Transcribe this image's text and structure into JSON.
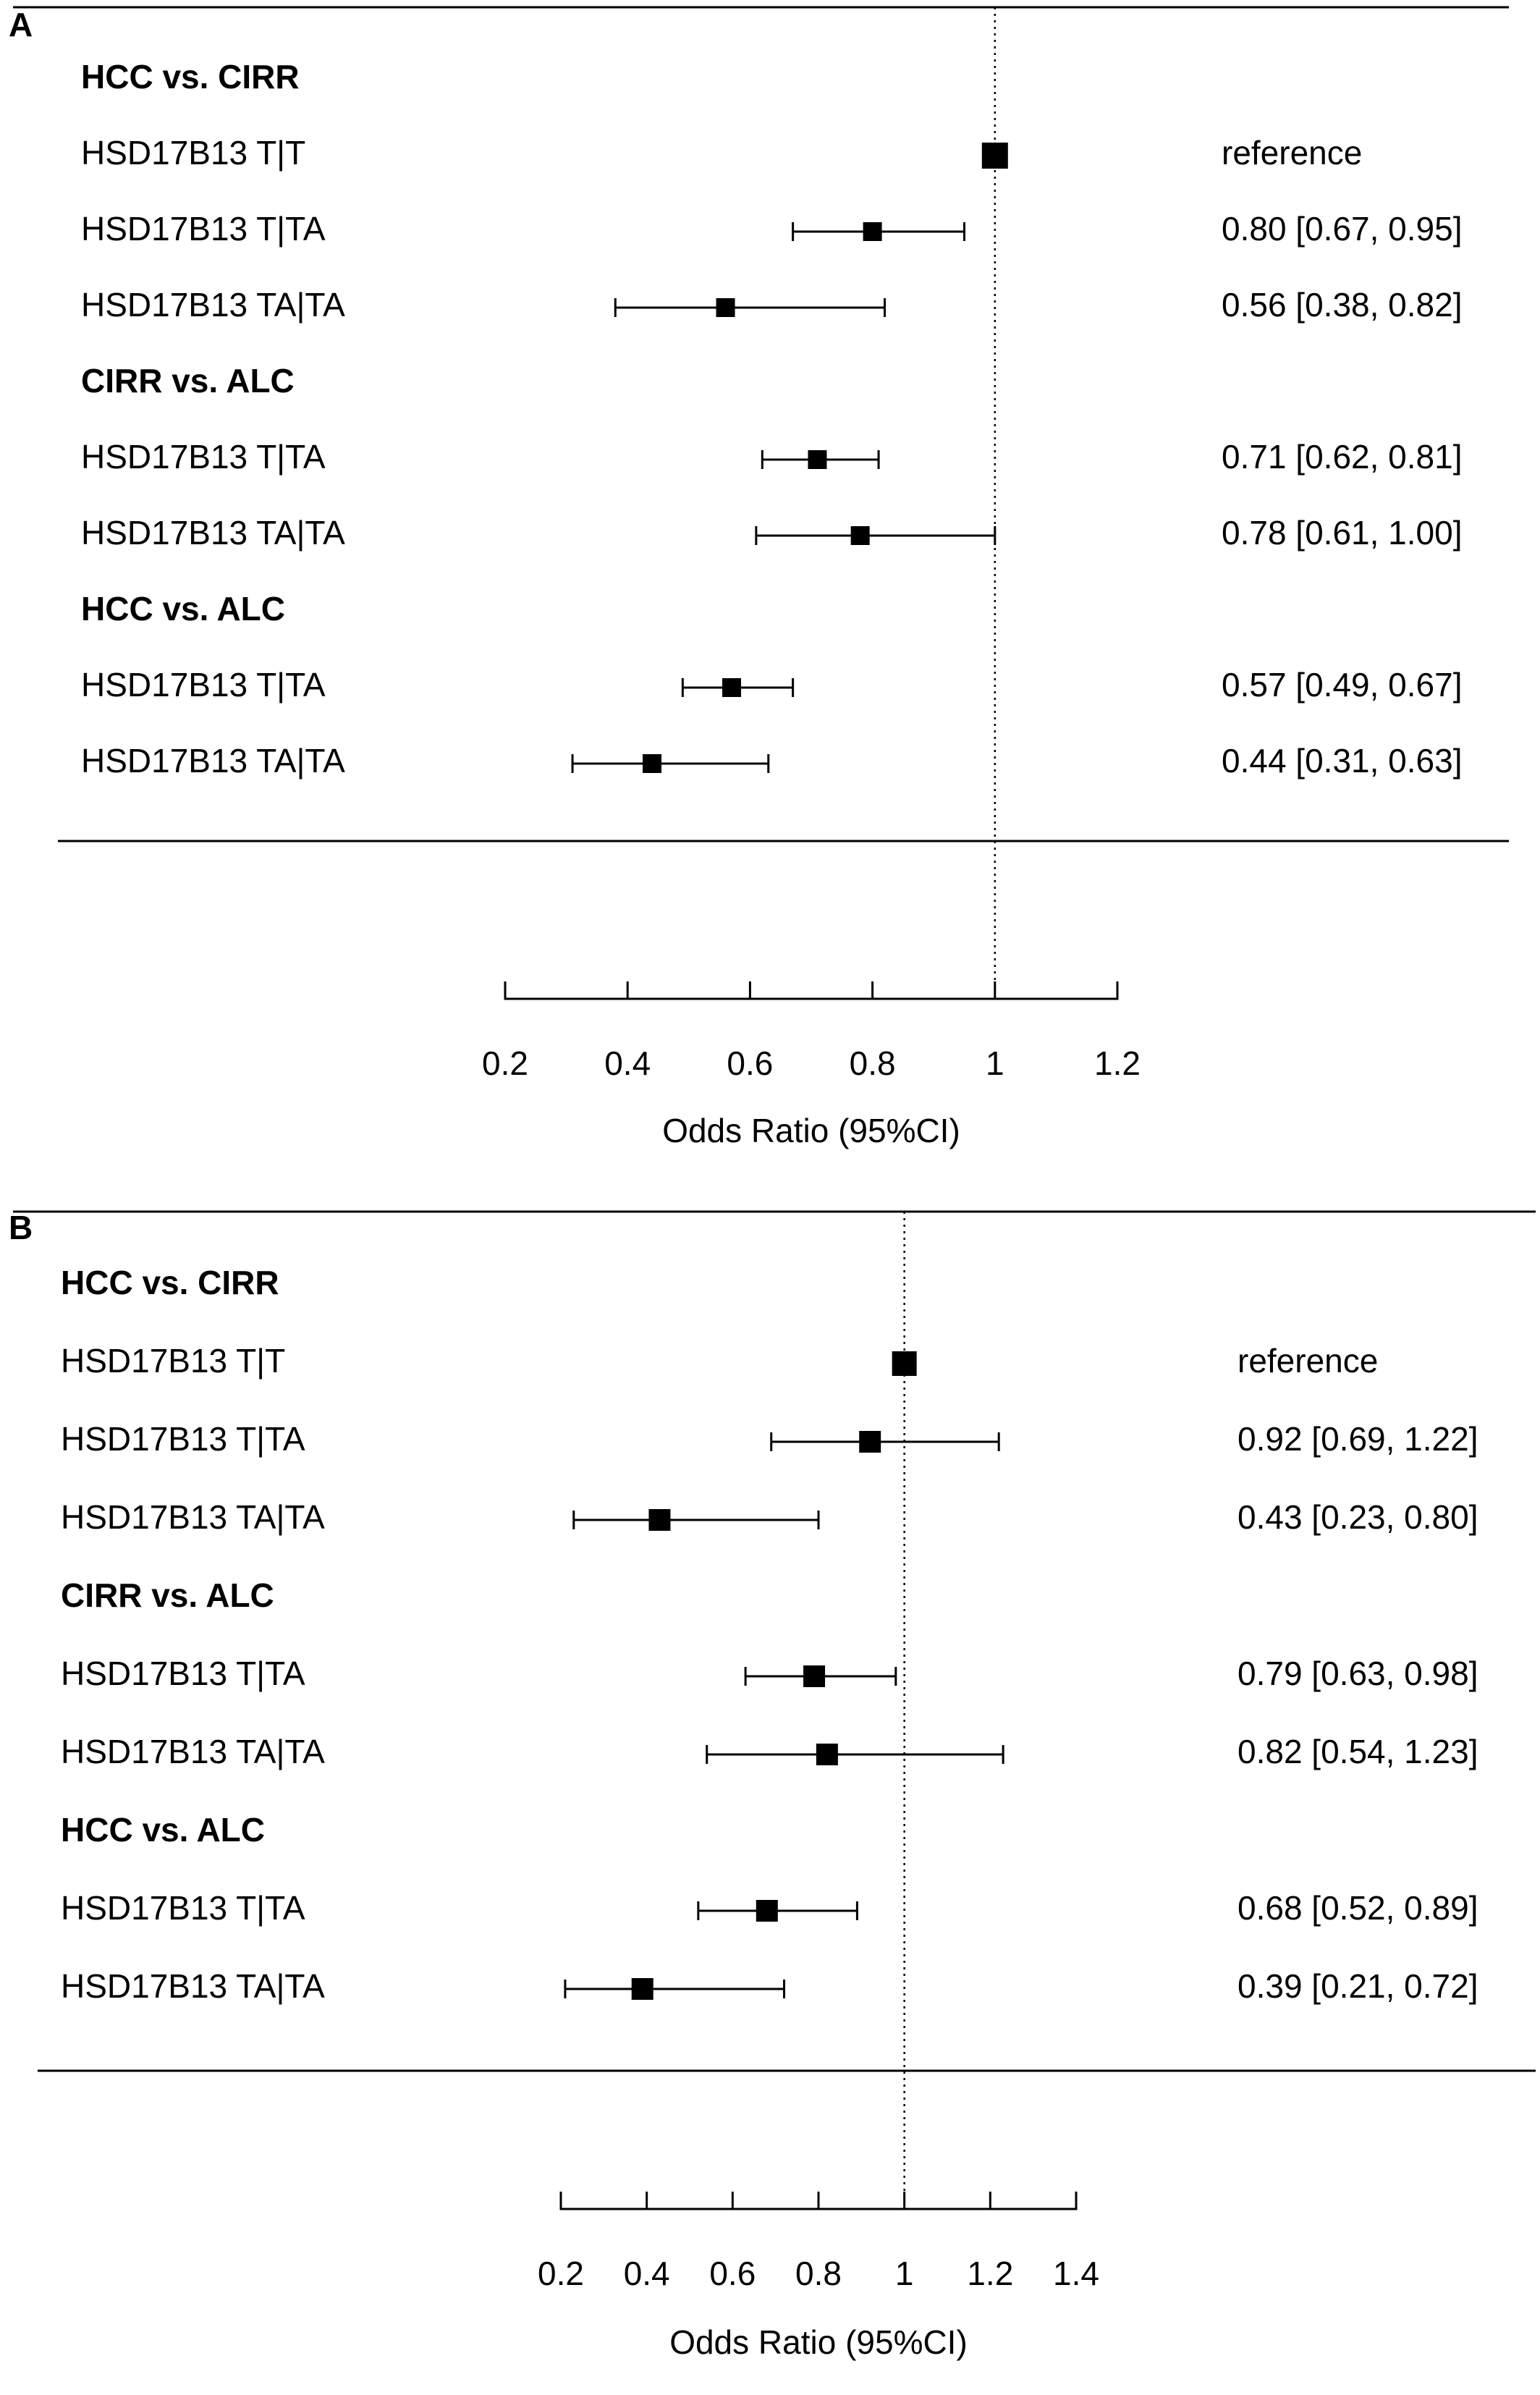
{
  "chart_data": [
    {
      "panel": "A",
      "type": "forest",
      "xlabel": "Odds Ratio (95%CI)",
      "xlim": [
        0.2,
        1.2
      ],
      "xticks": [
        0.2,
        0.4,
        0.6,
        0.8,
        1,
        1.2
      ],
      "xtick_labels": [
        "0.2",
        "0.4",
        "0.6",
        "0.8",
        "1",
        "1.2"
      ],
      "reference_line": 1,
      "rows": [
        {
          "kind": "group",
          "label": "HCC vs. CIRR"
        },
        {
          "kind": "item",
          "label": "HSD17B13 T|T",
          "or": 1.0,
          "text": "reference"
        },
        {
          "kind": "item",
          "label": "HSD17B13 T|TA",
          "or": 0.8,
          "lo": 0.67,
          "hi": 0.95,
          "text": "0.80 [0.67, 0.95]"
        },
        {
          "kind": "item",
          "label": "HSD17B13 TA|TA",
          "or": 0.56,
          "lo": 0.38,
          "hi": 0.82,
          "text": "0.56 [0.38, 0.82]"
        },
        {
          "kind": "group",
          "label": "CIRR vs. ALC"
        },
        {
          "kind": "item",
          "label": "HSD17B13 T|TA",
          "or": 0.71,
          "lo": 0.62,
          "hi": 0.81,
          "text": "0.71 [0.62, 0.81]"
        },
        {
          "kind": "item",
          "label": "HSD17B13 TA|TA",
          "or": 0.78,
          "lo": 0.61,
          "hi": 1.0,
          "text": "0.78 [0.61, 1.00]"
        },
        {
          "kind": "group",
          "label": "HCC vs. ALC"
        },
        {
          "kind": "item",
          "label": "HSD17B13 T|TA",
          "or": 0.57,
          "lo": 0.49,
          "hi": 0.67,
          "text": "0.57 [0.49, 0.67]"
        },
        {
          "kind": "item",
          "label": "HSD17B13 TA|TA",
          "or": 0.44,
          "lo": 0.31,
          "hi": 0.63,
          "text": "0.44 [0.31, 0.63]"
        }
      ]
    },
    {
      "panel": "B",
      "type": "forest",
      "xlabel": "Odds Ratio (95%CI)",
      "xlim": [
        0.2,
        1.4
      ],
      "xticks": [
        0.2,
        0.4,
        0.6,
        0.8,
        1,
        1.2,
        1.4
      ],
      "xtick_labels": [
        "0.2",
        "0.4",
        "0.6",
        "0.8",
        "1",
        "1.2",
        "1.4"
      ],
      "reference_line": 1,
      "rows": [
        {
          "kind": "group",
          "label": "HCC vs. CIRR"
        },
        {
          "kind": "item",
          "label": "HSD17B13 T|T",
          "or": 1.0,
          "text": "reference"
        },
        {
          "kind": "item",
          "label": "HSD17B13 T|TA",
          "or": 0.92,
          "lo": 0.69,
          "hi": 1.22,
          "text": "0.92 [0.69, 1.22]"
        },
        {
          "kind": "item",
          "label": "HSD17B13 TA|TA",
          "or": 0.43,
          "lo": 0.23,
          "hi": 0.8,
          "text": "0.43 [0.23, 0.80]"
        },
        {
          "kind": "group",
          "label": "CIRR vs. ALC"
        },
        {
          "kind": "item",
          "label": "HSD17B13 T|TA",
          "or": 0.79,
          "lo": 0.63,
          "hi": 0.98,
          "text": "0.79 [0.63, 0.98]"
        },
        {
          "kind": "item",
          "label": "HSD17B13 TA|TA",
          "or": 0.82,
          "lo": 0.54,
          "hi": 1.23,
          "text": "0.82 [0.54, 1.23]"
        },
        {
          "kind": "group",
          "label": "HCC vs. ALC"
        },
        {
          "kind": "item",
          "label": "HSD17B13 T|TA",
          "or": 0.68,
          "lo": 0.52,
          "hi": 0.89,
          "text": "0.68 [0.52, 0.89]"
        },
        {
          "kind": "item",
          "label": "HSD17B13 TA|TA",
          "or": 0.39,
          "lo": 0.21,
          "hi": 0.72,
          "text": "0.39 [0.21, 0.72]"
        }
      ]
    }
  ]
}
